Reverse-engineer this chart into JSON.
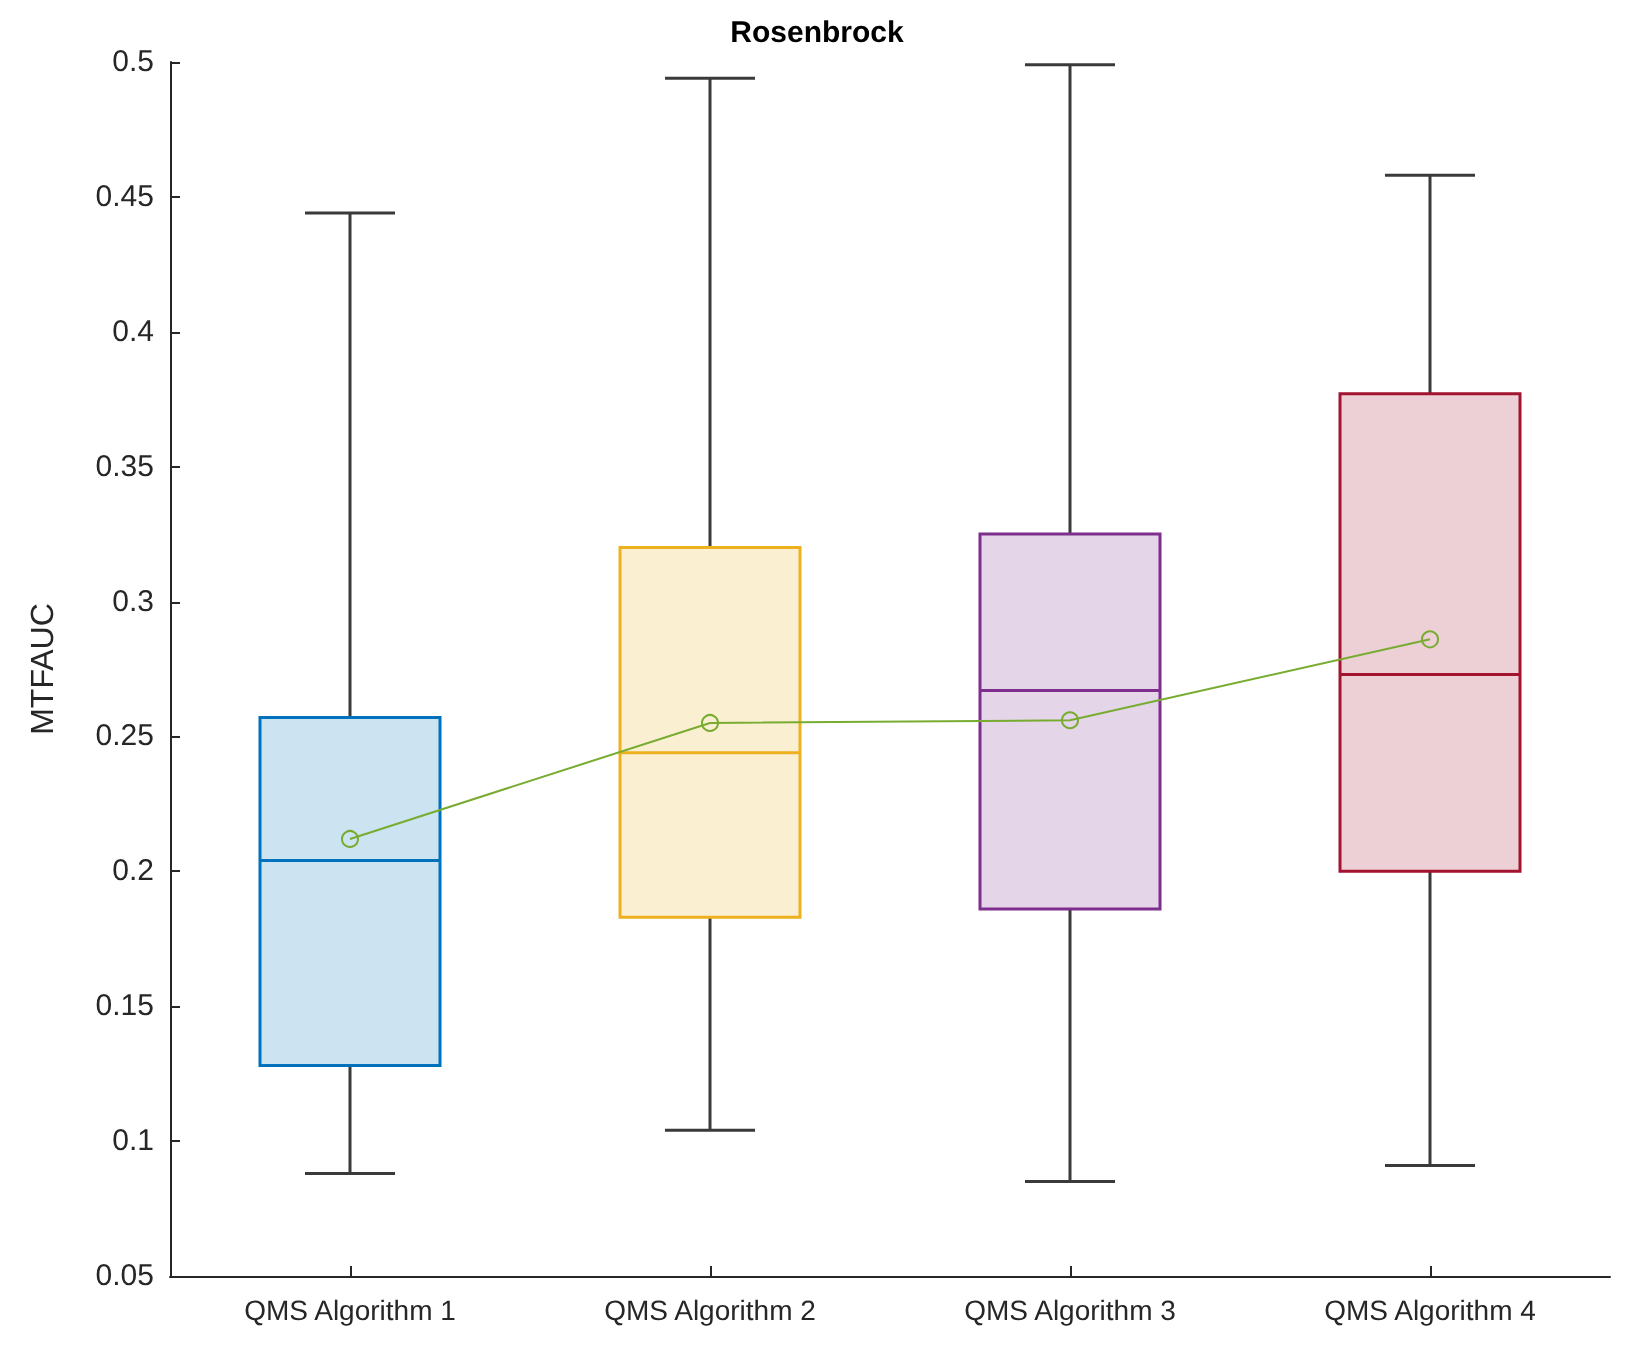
{
  "chart_data": {
    "type": "box",
    "title": "Rosenbrock",
    "ylabel": "MTFAUC",
    "categories": [
      "QMS Algorithm 1",
      "QMS Algorithm 2",
      "QMS Algorithm 3",
      "QMS Algorithm 4"
    ],
    "colors": [
      "#0072bd",
      "#edb120",
      "#7e2f8e",
      "#a2142f"
    ],
    "boxes": [
      {
        "low": 0.088,
        "q1": 0.128,
        "median": 0.204,
        "q3": 0.257,
        "high": 0.444
      },
      {
        "low": 0.104,
        "q1": 0.183,
        "median": 0.244,
        "q3": 0.32,
        "high": 0.494
      },
      {
        "low": 0.085,
        "q1": 0.186,
        "median": 0.267,
        "q3": 0.325,
        "high": 0.499
      },
      {
        "low": 0.091,
        "q1": 0.2,
        "median": 0.273,
        "q3": 0.377,
        "high": 0.458
      }
    ],
    "series": [
      {
        "type": "line",
        "color": "#77ac30",
        "values": [
          0.212,
          0.255,
          0.256,
          0.286
        ]
      }
    ],
    "marker": "circle",
    "ylim": [
      0.05,
      0.5
    ],
    "yticks": [
      0.05,
      0.1,
      0.15,
      0.2,
      0.25,
      0.3,
      0.35,
      0.4,
      0.45,
      0.5
    ],
    "grid": false
  }
}
